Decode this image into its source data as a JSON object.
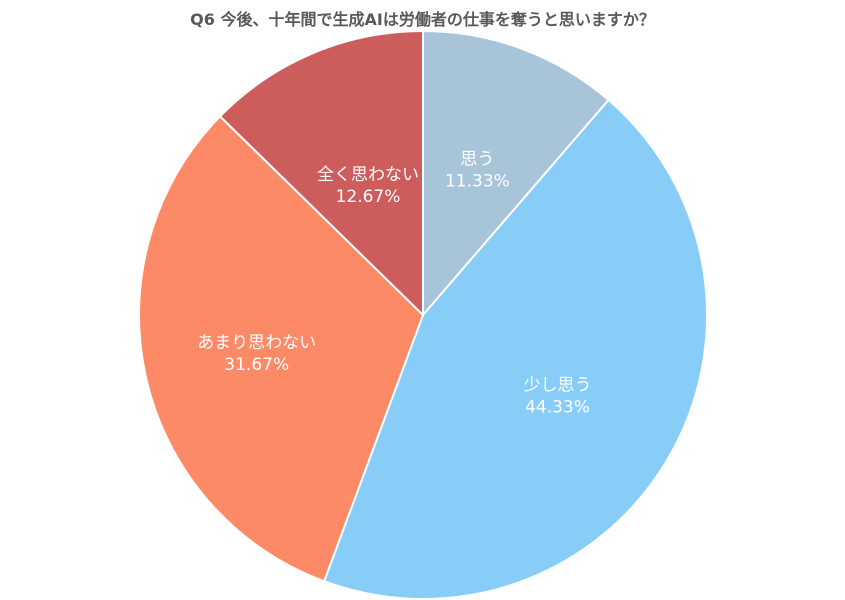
{
  "chart_data": {
    "type": "pie",
    "title": "Q6 今後、十年間で生成AIは労働者の仕事を奪うと思いますか？",
    "slices": [
      {
        "label": "思う",
        "value": 11.33,
        "value_label": "11.33%",
        "color": "#a7c4d9"
      },
      {
        "label": "少し思う",
        "value": 44.33,
        "value_label": "44.33%",
        "color": "#87cdf8"
      },
      {
        "label": "あまり思わない",
        "value": 31.67,
        "value_label": "31.67%",
        "color": "#fd8a67"
      },
      {
        "label": "全く思わない",
        "value": 12.67,
        "value_label": "12.67%",
        "color": "#cd5c5c"
      }
    ],
    "start_angle": "12 o'clock",
    "direction": "clockwise"
  }
}
